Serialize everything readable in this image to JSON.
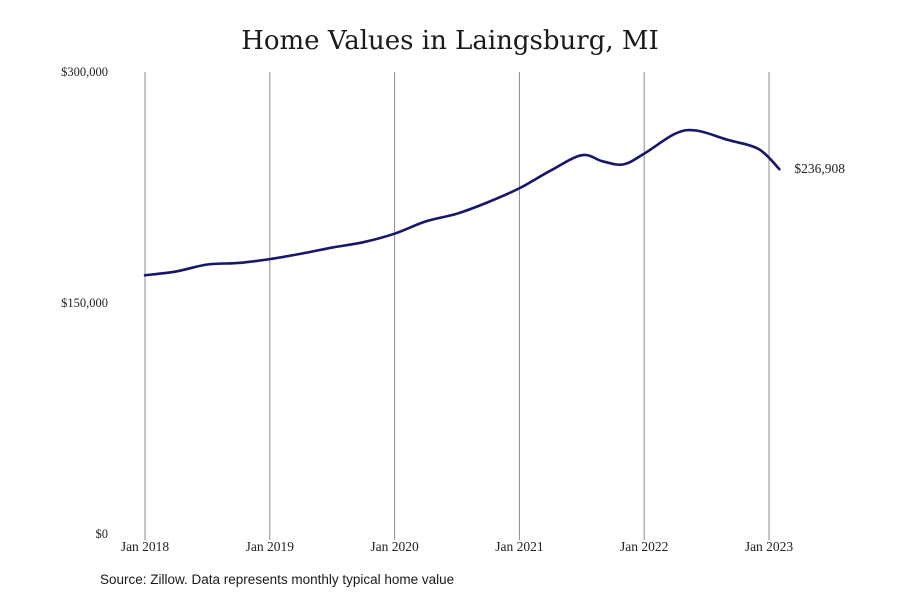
{
  "chart_data": {
    "type": "line",
    "title": "Home Values in Laingsburg, MI",
    "xlabel": "",
    "ylabel": "",
    "x_ticks": [
      "Jan 2018",
      "Jan 2019",
      "Jan 2020",
      "Jan 2021",
      "Jan 2022",
      "Jan 2023"
    ],
    "y_ticks": [
      "$0",
      "$150,000",
      "$300,000"
    ],
    "y_tick_values": [
      0,
      150000,
      300000
    ],
    "ylim": [
      0,
      300000
    ],
    "xlim": [
      "2018-01",
      "2023-02"
    ],
    "grid": "vertical",
    "line_color": "#16166b",
    "last_value_label": "$236,908",
    "series": [
      {
        "x": [
          "2018-01",
          "2018-04",
          "2018-07",
          "2018-10",
          "2019-01",
          "2019-04",
          "2019-07",
          "2019-10",
          "2020-01",
          "2020-04",
          "2020-07",
          "2020-10",
          "2021-01",
          "2021-04",
          "2021-07",
          "2021-09",
          "2021-11",
          "2022-01",
          "2022-04",
          "2022-06",
          "2022-09",
          "2022-12",
          "2023-02"
        ],
        "values": [
          168000,
          170500,
          175000,
          176000,
          178500,
          182000,
          186000,
          189500,
          195000,
          203000,
          208000,
          215500,
          224500,
          236000,
          246000,
          242000,
          240000,
          247000,
          260000,
          262000,
          256000,
          250000,
          236908
        ]
      }
    ]
  },
  "source_text": "Source: Zillow. Data represents monthly typical home value"
}
